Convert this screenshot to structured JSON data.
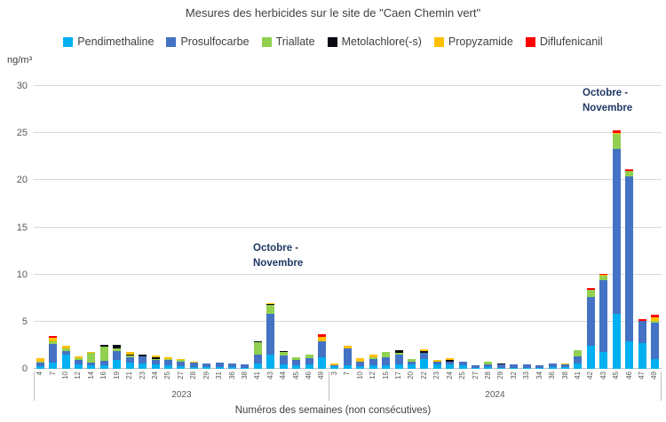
{
  "title": "Mesures des herbicides sur le site de \"Caen Chemin vert\"",
  "y_axis_unit": "ng/m³",
  "x_axis_title": "Numéros des semaines (non consécutives)",
  "annotations": [
    {
      "line1": "Octobre -",
      "line2": "Novembre"
    },
    {
      "line1": "Octobre -",
      "line2": "Novembre"
    }
  ],
  "chart_data": {
    "type": "bar",
    "stacked": true,
    "grid": true,
    "legend_position": "top",
    "ylim": [
      0,
      30
    ],
    "ytick_step": 5,
    "year_groups": [
      {
        "year": "2023",
        "count": 23
      },
      {
        "year": "2024",
        "count": 26
      }
    ],
    "categories": [
      "4",
      "7",
      "10",
      "12",
      "14",
      "16",
      "19",
      "21",
      "23",
      "24",
      "25",
      "27",
      "28",
      "29",
      "31",
      "36",
      "38",
      "41",
      "43",
      "44",
      "45",
      "46",
      "49",
      "3",
      "7",
      "10",
      "12",
      "15",
      "17",
      "20",
      "22",
      "23",
      "24",
      "25",
      "27",
      "28",
      "29",
      "32",
      "33",
      "34",
      "36",
      "38",
      "41",
      "42",
      "43",
      "45",
      "46",
      "47",
      "49"
    ],
    "series": [
      {
        "name": "Pendimethaline",
        "color": "#00b0f0",
        "values": [
          0.25,
          0.7,
          1.5,
          0.5,
          0.35,
          0.4,
          0.95,
          0.65,
          0.6,
          0.5,
          0.4,
          0.3,
          0.2,
          0.15,
          0.15,
          0.15,
          0.1,
          0.6,
          1.5,
          0.5,
          0.35,
          0.5,
          1.2,
          0.25,
          0.35,
          0.3,
          0.35,
          0.4,
          0.45,
          0.5,
          1.0,
          0.5,
          0.45,
          0.4,
          0.1,
          0.2,
          0.1,
          0.1,
          0.1,
          0.1,
          0.15,
          0.15,
          0.55,
          2.45,
          1.8,
          5.8,
          2.9,
          2.7,
          1.05
        ]
      },
      {
        "name": "Prosulfocarbe",
        "color": "#4472c4",
        "values": [
          0.45,
          1.9,
          0.4,
          0.45,
          0.3,
          0.45,
          0.95,
          0.55,
          0.7,
          0.4,
          0.5,
          0.5,
          0.45,
          0.45,
          0.5,
          0.45,
          0.4,
          0.9,
          4.3,
          0.9,
          0.55,
          0.6,
          1.75,
          0.1,
          1.8,
          0.5,
          0.7,
          0.8,
          1.1,
          0.3,
          0.7,
          0.3,
          0.3,
          0.4,
          0.25,
          0.3,
          0.4,
          0.4,
          0.4,
          0.25,
          0.45,
          0.3,
          0.8,
          5.2,
          7.6,
          17.5,
          17.5,
          2.4,
          3.85
        ]
      },
      {
        "name": "Triallate",
        "color": "#92d050",
        "values": [
          0.1,
          0.35,
          0.25,
          0.2,
          1.0,
          1.55,
          0.3,
          0.25,
          0,
          0.15,
          0.15,
          0.1,
          0,
          0,
          0,
          0,
          0,
          1.3,
          0.95,
          0.35,
          0.3,
          0.4,
          0,
          0,
          0,
          0,
          0.2,
          0.6,
          0.15,
          0.2,
          0,
          0,
          0,
          0,
          0,
          0.25,
          0,
          0,
          0,
          0,
          0,
          0,
          0.6,
          0.7,
          0.45,
          1.6,
          0.55,
          0,
          0.2
        ]
      },
      {
        "name": "Metolachlore(-s)",
        "color": "#0a0a14",
        "values": [
          0,
          0,
          0,
          0,
          0,
          0.15,
          0.3,
          0.1,
          0.2,
          0.2,
          0,
          0,
          0,
          0,
          0,
          0,
          0,
          0.1,
          0.15,
          0.15,
          0,
          0,
          0,
          0,
          0,
          0,
          0,
          0,
          0.3,
          0,
          0.2,
          0,
          0.15,
          0,
          0,
          0,
          0.1,
          0,
          0,
          0,
          0,
          0,
          0,
          0,
          0,
          0,
          0,
          0,
          0
        ]
      },
      {
        "name": "Propyzamide",
        "color": "#ffc000",
        "values": [
          0.3,
          0.3,
          0.3,
          0.2,
          0.15,
          0,
          0,
          0.2,
          0,
          0.2,
          0.15,
          0.1,
          0.1,
          0,
          0,
          0,
          0,
          0,
          0.05,
          0,
          0,
          0,
          0.45,
          0.2,
          0.3,
          0.3,
          0.25,
          0,
          0,
          0,
          0.2,
          0.15,
          0.2,
          0,
          0,
          0,
          0,
          0,
          0,
          0,
          0,
          0.15,
          0,
          0,
          0.1,
          0.1,
          0,
          0,
          0.4
        ]
      },
      {
        "name": "Diflufenicanil",
        "color": "#ff0000",
        "values": [
          0,
          0.2,
          0,
          0,
          0,
          0,
          0,
          0,
          0,
          0,
          0,
          0,
          0,
          0,
          0,
          0,
          0,
          0,
          0,
          0,
          0,
          0,
          0.3,
          0,
          0,
          0,
          0,
          0,
          0,
          0,
          0,
          0,
          0,
          0,
          0,
          0,
          0,
          0,
          0,
          0,
          0,
          0,
          0,
          0.2,
          0.15,
          0.3,
          0.25,
          0.2,
          0.2
        ]
      }
    ]
  }
}
